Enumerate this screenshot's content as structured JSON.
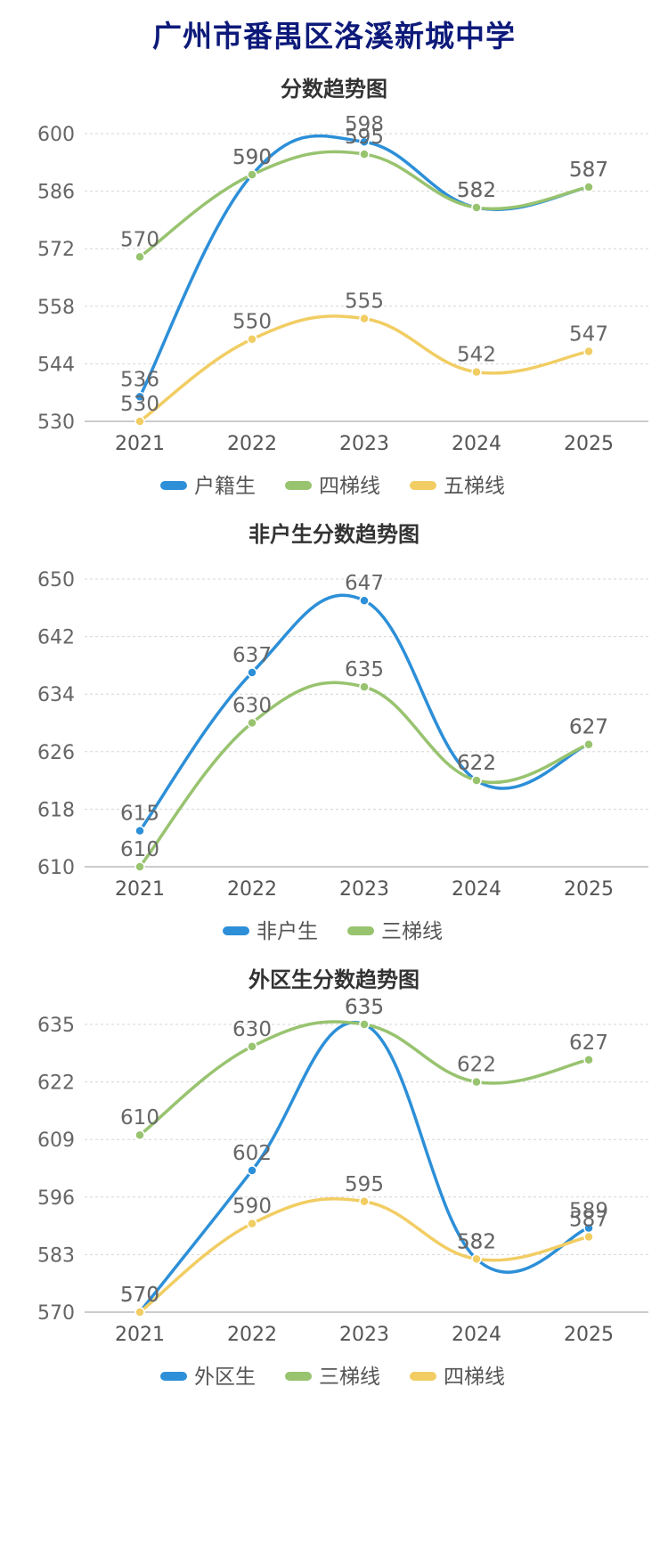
{
  "page": {
    "title": "广州市番禺区洛溪新城中学"
  },
  "chart_data": [
    {
      "type": "line",
      "title": "分数趋势图",
      "categories": [
        "2021",
        "2022",
        "2023",
        "2024",
        "2025"
      ],
      "y_ticks": [
        530,
        544,
        558,
        572,
        586,
        600
      ],
      "ylim": [
        530,
        600
      ],
      "grid": true,
      "legend": "bottom",
      "series": [
        {
          "name": "户籍生",
          "color": "#2c8fd8",
          "values": [
            536,
            590,
            598,
            582,
            587
          ]
        },
        {
          "name": "四梯线",
          "color": "#98c36f",
          "values": [
            570,
            590,
            595,
            582,
            587
          ]
        },
        {
          "name": "五梯线",
          "color": "#f1cd63",
          "values": [
            530,
            550,
            555,
            542,
            547
          ]
        }
      ]
    },
    {
      "type": "line",
      "title": "非户生分数趋势图",
      "categories": [
        "2021",
        "2022",
        "2023",
        "2024",
        "2025"
      ],
      "y_ticks": [
        610,
        618,
        626,
        634,
        642,
        650
      ],
      "ylim": [
        610,
        650
      ],
      "grid": true,
      "legend": "bottom",
      "series": [
        {
          "name": "非户生",
          "color": "#2c8fd8",
          "values": [
            615,
            637,
            647,
            622,
            627
          ]
        },
        {
          "name": "三梯线",
          "color": "#98c36f",
          "values": [
            610,
            630,
            635,
            622,
            627
          ]
        }
      ]
    },
    {
      "type": "line",
      "title": "外区生分数趋势图",
      "categories": [
        "2021",
        "2022",
        "2023",
        "2024",
        "2025"
      ],
      "y_ticks": [
        570,
        583,
        596,
        609,
        622,
        635
      ],
      "ylim": [
        570,
        635
      ],
      "grid": true,
      "legend": "bottom",
      "series": [
        {
          "name": "外区生",
          "color": "#2c8fd8",
          "values": [
            570,
            602,
            635,
            582,
            589
          ]
        },
        {
          "name": "三梯线",
          "color": "#98c36f",
          "values": [
            610,
            630,
            635,
            622,
            627
          ]
        },
        {
          "name": "四梯线",
          "color": "#f1cd63",
          "values": [
            570,
            590,
            595,
            582,
            587
          ]
        }
      ]
    }
  ]
}
